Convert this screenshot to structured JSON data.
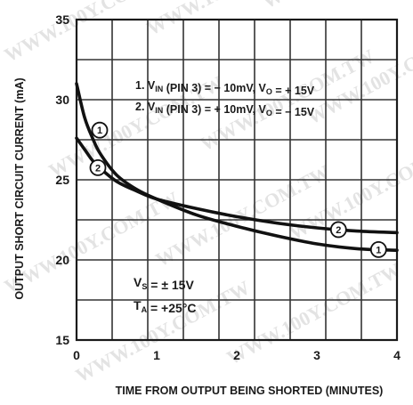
{
  "chart_data": {
    "type": "line",
    "xlabel": "TIME FROM OUTPUT BEING SHORTED (MINUTES)",
    "ylabel": "OUTPUT SHORT CIRCUIT CURRENT (mA)",
    "xlim": [
      0,
      4
    ],
    "ylim": [
      15,
      35
    ],
    "x_ticks": [
      "0",
      "1",
      "2",
      "3",
      "4"
    ],
    "y_ticks": [
      "15",
      "20",
      "25",
      "30",
      "35"
    ],
    "grid": true,
    "series": [
      {
        "name": "1",
        "x": [
          0,
          0.1,
          0.2,
          0.3,
          0.5,
          0.75,
          1.0,
          1.5,
          2.0,
          2.5,
          3.0,
          3.5,
          4.0
        ],
        "y": [
          31.0,
          28.9,
          27.6,
          26.6,
          25.3,
          24.4,
          23.8,
          22.8,
          22.1,
          21.5,
          21.0,
          20.7,
          20.6
        ],
        "marker_x": 3.77
      },
      {
        "name": "2",
        "x": [
          0,
          0.1,
          0.2,
          0.3,
          0.5,
          0.75,
          1.0,
          1.5,
          2.0,
          2.5,
          3.0,
          3.5,
          4.0
        ],
        "y": [
          27.6,
          26.9,
          26.2,
          25.7,
          24.9,
          24.3,
          23.8,
          23.2,
          22.7,
          22.3,
          22.0,
          21.8,
          21.7
        ],
        "marker_x": 3.27
      }
    ],
    "legend": [
      {
        "num": "1.",
        "text": "V",
        "sub": "IN",
        "rest": " (PIN 3) = − 10mV, V",
        "sub2": "O",
        "rest2": " = + 15V"
      },
      {
        "num": "2.",
        "text": "V",
        "sub": "IN",
        "rest": " (PIN 3) = + 10mV, V",
        "sub2": "O",
        "rest2": " = − 15V"
      }
    ],
    "conditions": [
      {
        "text": "V",
        "sub": "S",
        "rest": " = ± 15V"
      },
      {
        "text": "T",
        "sub": "A",
        "rest": " = +25°C"
      }
    ],
    "watermark": "WWW.100Y.COM.TW"
  }
}
